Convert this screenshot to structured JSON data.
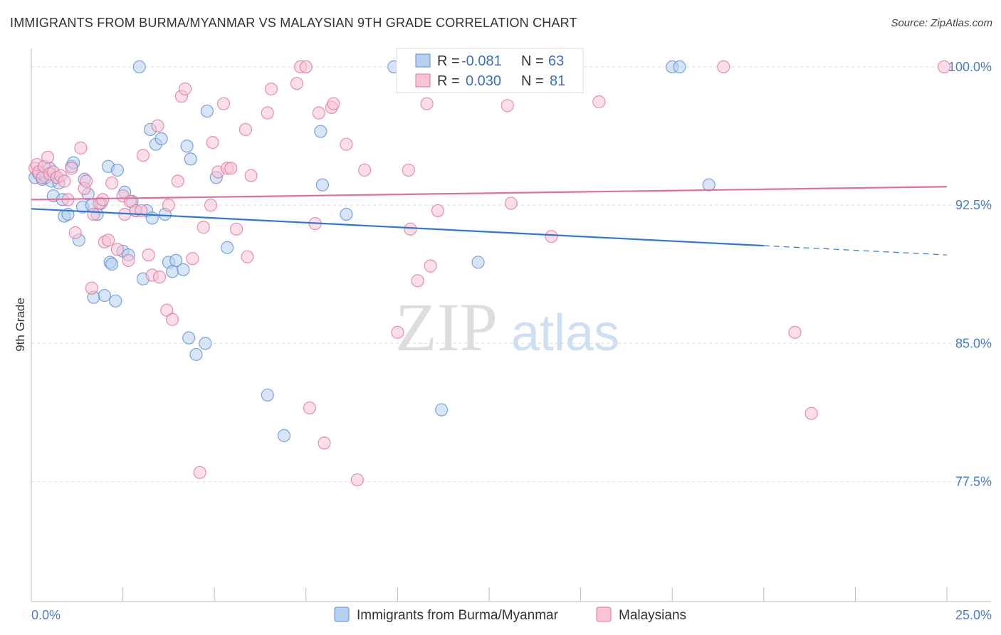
{
  "title": "IMMIGRANTS FROM BURMA/MYANMAR VS MALAYSIAN 9TH GRADE CORRELATION CHART",
  "source": "Source: ZipAtlas.com",
  "watermark": {
    "zip": "ZIP",
    "atlas": "atlas"
  },
  "chart_data": {
    "type": "scatter",
    "xlabel": "",
    "ylabel": "9th Grade",
    "xlim": [
      0,
      25
    ],
    "ylim": [
      71,
      101
    ],
    "x_tick_labels": [
      "0.0%",
      "25.0%"
    ],
    "y_ticks": [
      77.5,
      85.0,
      92.5,
      100.0
    ],
    "y_tick_labels": [
      "77.5%",
      "85.0%",
      "92.5%",
      "100.0%"
    ],
    "colors": {
      "blue": "#5b8ed6",
      "blue_fill": "#b8d0f0",
      "pink": "#e0759b",
      "pink_fill": "#f7c3d5",
      "blue_line": "#2f78d2",
      "pink_line": "#e0709a"
    },
    "legend": [
      {
        "r_label": "R =",
        "r_value": "-0.081",
        "n_label": "N =",
        "n_value": "63"
      },
      {
        "r_label": "R =",
        "r_value": "0.030",
        "n_label": "N =",
        "n_value": "81"
      }
    ],
    "series": [
      {
        "name": "Immigrants from Burma/Myanmar",
        "color": "blue",
        "trend": {
          "x0": 0,
          "y0": 92.3,
          "x1": 20,
          "y1": 90.3,
          "dash_to_x": 25,
          "dash_to_y": 89.8
        },
        "points": [
          [
            0.1,
            94.0
          ],
          [
            0.2,
            94.2
          ],
          [
            0.3,
            93.9
          ],
          [
            0.35,
            94.1
          ],
          [
            0.4,
            94.0
          ],
          [
            0.5,
            94.5
          ],
          [
            0.55,
            93.8
          ],
          [
            0.6,
            93.0
          ],
          [
            0.7,
            94.0
          ],
          [
            0.75,
            93.7
          ],
          [
            0.85,
            92.8
          ],
          [
            0.9,
            91.9
          ],
          [
            1.0,
            92.0
          ],
          [
            1.1,
            94.6
          ],
          [
            1.15,
            94.8
          ],
          [
            1.3,
            90.6
          ],
          [
            1.4,
            92.4
          ],
          [
            1.45,
            93.9
          ],
          [
            1.55,
            93.1
          ],
          [
            1.65,
            92.5
          ],
          [
            1.7,
            87.5
          ],
          [
            1.8,
            92.0
          ],
          [
            1.9,
            92.6
          ],
          [
            2.0,
            87.6
          ],
          [
            2.1,
            94.6
          ],
          [
            2.15,
            89.4
          ],
          [
            2.2,
            89.3
          ],
          [
            2.3,
            87.3
          ],
          [
            2.35,
            94.4
          ],
          [
            2.5,
            90.0
          ],
          [
            2.55,
            93.2
          ],
          [
            2.65,
            89.8
          ],
          [
            2.75,
            92.7
          ],
          [
            2.85,
            92.2
          ],
          [
            2.95,
            100.0
          ],
          [
            3.05,
            88.5
          ],
          [
            3.15,
            92.2
          ],
          [
            3.25,
            96.6
          ],
          [
            3.3,
            91.8
          ],
          [
            3.4,
            95.8
          ],
          [
            3.55,
            96.1
          ],
          [
            3.65,
            92.0
          ],
          [
            3.75,
            89.4
          ],
          [
            3.85,
            88.9
          ],
          [
            3.95,
            89.5
          ],
          [
            4.15,
            89.0
          ],
          [
            4.25,
            95.7
          ],
          [
            4.3,
            85.3
          ],
          [
            4.35,
            95.0
          ],
          [
            4.5,
            84.4
          ],
          [
            4.75,
            85.0
          ],
          [
            4.8,
            97.6
          ],
          [
            5.05,
            94.0
          ],
          [
            5.35,
            90.2
          ],
          [
            6.45,
            82.2
          ],
          [
            6.9,
            80.0
          ],
          [
            7.9,
            96.5
          ],
          [
            7.95,
            93.6
          ],
          [
            8.6,
            92.0
          ],
          [
            9.9,
            100.0
          ],
          [
            11.2,
            81.4
          ],
          [
            12.2,
            89.4
          ],
          [
            17.5,
            100.0
          ],
          [
            17.7,
            100.0
          ],
          [
            18.5,
            93.6
          ]
        ]
      },
      {
        "name": "Malaysians",
        "color": "pink",
        "trend": {
          "x0": 0,
          "y0": 92.8,
          "x1": 25,
          "y1": 93.5
        },
        "points": [
          [
            0.1,
            94.5
          ],
          [
            0.15,
            94.7
          ],
          [
            0.2,
            94.3
          ],
          [
            0.3,
            94.0
          ],
          [
            0.35,
            94.6
          ],
          [
            0.45,
            95.1
          ],
          [
            0.5,
            94.2
          ],
          [
            0.6,
            94.3
          ],
          [
            0.7,
            94.0
          ],
          [
            0.8,
            94.1
          ],
          [
            0.9,
            93.8
          ],
          [
            1.0,
            92.8
          ],
          [
            1.1,
            94.5
          ],
          [
            1.2,
            91.0
          ],
          [
            1.35,
            95.6
          ],
          [
            1.45,
            93.4
          ],
          [
            1.5,
            93.8
          ],
          [
            1.65,
            88.0
          ],
          [
            1.7,
            92.0
          ],
          [
            1.85,
            92.6
          ],
          [
            1.95,
            92.8
          ],
          [
            2.0,
            90.5
          ],
          [
            2.1,
            90.6
          ],
          [
            2.2,
            93.7
          ],
          [
            2.35,
            90.1
          ],
          [
            2.5,
            93.0
          ],
          [
            2.55,
            92.0
          ],
          [
            2.65,
            89.5
          ],
          [
            2.7,
            92.7
          ],
          [
            2.85,
            92.2
          ],
          [
            3.0,
            92.2
          ],
          [
            3.05,
            95.2
          ],
          [
            3.2,
            89.8
          ],
          [
            3.3,
            88.7
          ],
          [
            3.45,
            96.8
          ],
          [
            3.5,
            88.6
          ],
          [
            3.7,
            86.8
          ],
          [
            3.75,
            92.5
          ],
          [
            3.85,
            86.3
          ],
          [
            4.0,
            93.8
          ],
          [
            4.1,
            98.4
          ],
          [
            4.2,
            98.8
          ],
          [
            4.4,
            89.6
          ],
          [
            4.6,
            78.0
          ],
          [
            4.7,
            91.3
          ],
          [
            4.9,
            92.5
          ],
          [
            4.95,
            95.9
          ],
          [
            5.1,
            94.3
          ],
          [
            5.25,
            98.0
          ],
          [
            5.35,
            94.5
          ],
          [
            5.45,
            94.5
          ],
          [
            5.6,
            91.2
          ],
          [
            5.85,
            96.6
          ],
          [
            5.9,
            89.7
          ],
          [
            6.0,
            94.1
          ],
          [
            6.45,
            97.5
          ],
          [
            6.55,
            98.8
          ],
          [
            7.25,
            99.1
          ],
          [
            7.35,
            100.0
          ],
          [
            7.5,
            100.0
          ],
          [
            7.6,
            81.5
          ],
          [
            7.75,
            91.5
          ],
          [
            7.85,
            97.5
          ],
          [
            8.0,
            79.6
          ],
          [
            8.2,
            97.8
          ],
          [
            8.25,
            98.0
          ],
          [
            8.6,
            95.8
          ],
          [
            8.9,
            77.6
          ],
          [
            9.1,
            94.4
          ],
          [
            10.0,
            85.6
          ],
          [
            10.3,
            94.4
          ],
          [
            10.35,
            91.2
          ],
          [
            10.55,
            88.4
          ],
          [
            10.8,
            98.0
          ],
          [
            10.9,
            89.2
          ],
          [
            11.1,
            92.2
          ],
          [
            13.0,
            97.9
          ],
          [
            13.1,
            92.6
          ],
          [
            14.2,
            90.8
          ],
          [
            15.5,
            98.1
          ],
          [
            18.9,
            100.0
          ],
          [
            20.85,
            85.6
          ],
          [
            21.3,
            81.2
          ],
          [
            25.5,
            100.0
          ]
        ]
      }
    ]
  },
  "bottom_legend": [
    {
      "label": "Immigrants from Burma/Myanmar",
      "color": "blue"
    },
    {
      "label": "Malaysians",
      "color": "pink"
    }
  ]
}
